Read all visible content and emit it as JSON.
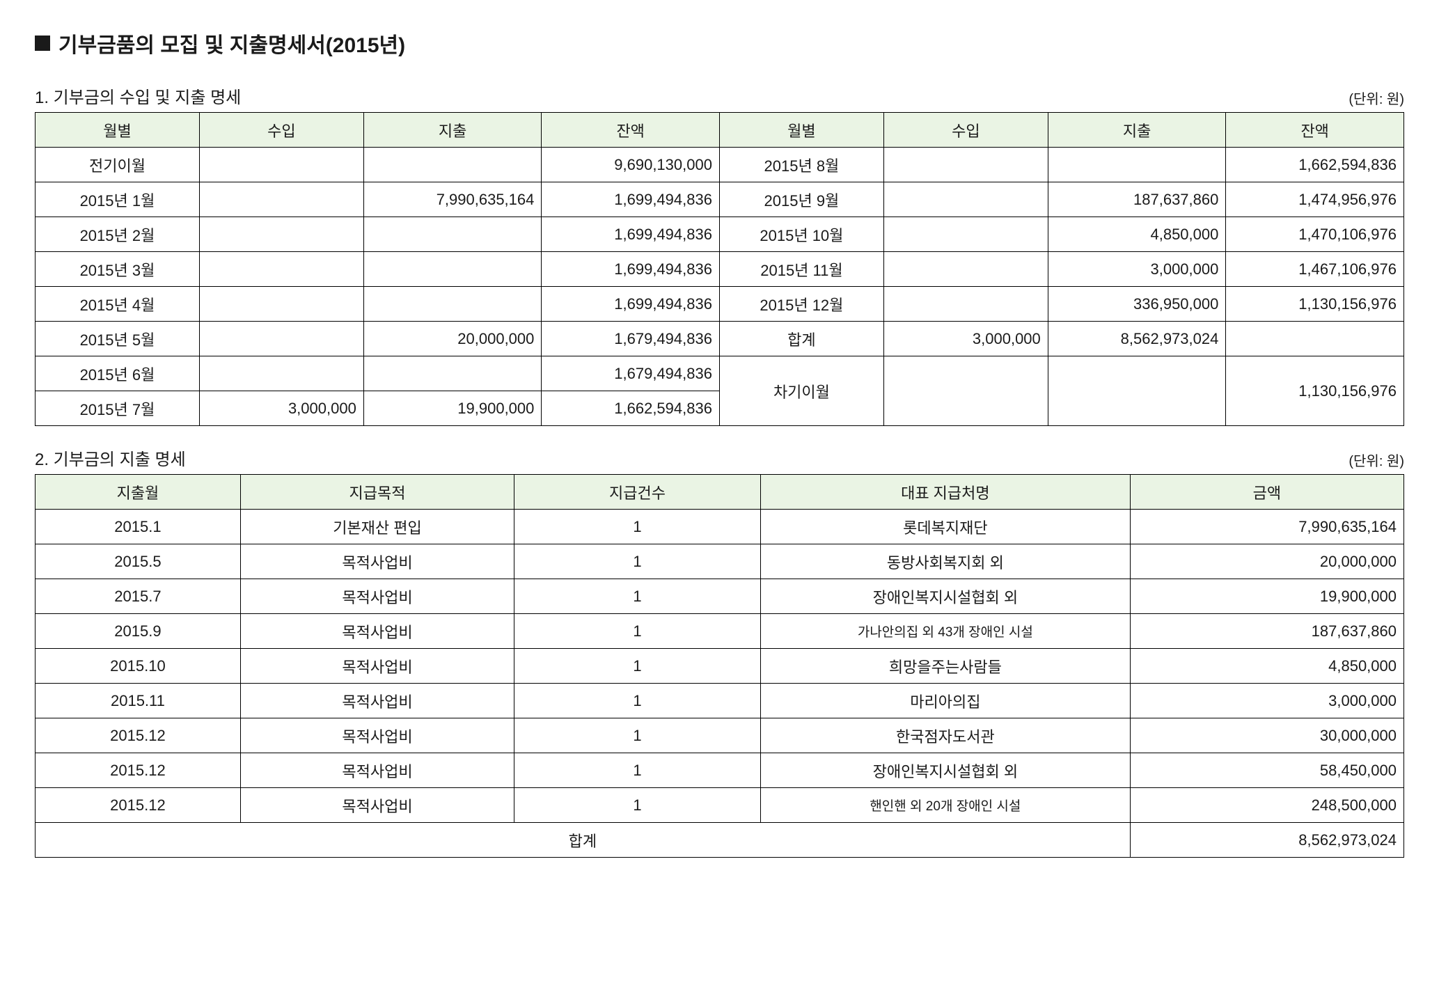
{
  "title": "기부금품의 모집 및 지출명세서(2015년)",
  "unit_label": "(단위: 원)",
  "section1": {
    "heading": "1. 기부금의 수입 및 지출 명세",
    "headers": [
      "월별",
      "수입",
      "지출",
      "잔액",
      "월별",
      "수입",
      "지출",
      "잔액"
    ],
    "rows": [
      {
        "m1": "전기이월",
        "i1": "",
        "e1": "",
        "b1": "9,690,130,000",
        "m2": "2015년 8월",
        "i2": "",
        "e2": "",
        "b2": "1,662,594,836"
      },
      {
        "m1": "2015년 1월",
        "i1": "",
        "e1": "7,990,635,164",
        "b1": "1,699,494,836",
        "m2": "2015년 9월",
        "i2": "",
        "e2": "187,637,860",
        "b2": "1,474,956,976"
      },
      {
        "m1": "2015년 2월",
        "i1": "",
        "e1": "",
        "b1": "1,699,494,836",
        "m2": "2015년 10월",
        "i2": "",
        "e2": "4,850,000",
        "b2": "1,470,106,976"
      },
      {
        "m1": "2015년 3월",
        "i1": "",
        "e1": "",
        "b1": "1,699,494,836",
        "m2": "2015년 11월",
        "i2": "",
        "e2": "3,000,000",
        "b2": "1,467,106,976"
      },
      {
        "m1": "2015년 4월",
        "i1": "",
        "e1": "",
        "b1": "1,699,494,836",
        "m2": "2015년 12월",
        "i2": "",
        "e2": "336,950,000",
        "b2": "1,130,156,976"
      },
      {
        "m1": "2015년 5월",
        "i1": "",
        "e1": "20,000,000",
        "b1": "1,679,494,836",
        "m2": "합계",
        "i2": "3,000,000",
        "e2": "8,562,973,024",
        "b2": ""
      }
    ],
    "row6": {
      "m1": "2015년 6월",
      "i1": "",
      "e1": "",
      "b1": "1,679,494,836"
    },
    "row7": {
      "m1": "2015년 7월",
      "i1": "3,000,000",
      "e1": "19,900,000",
      "b1": "1,662,594,836"
    },
    "carry_label": "차기이월",
    "carry_balance": "1,130,156,976"
  },
  "section2": {
    "heading": "2. 기부금의 지출 명세",
    "headers": [
      "지출월",
      "지급목적",
      "지급건수",
      "대표 지급처명",
      "금액"
    ],
    "rows": [
      {
        "month": "2015.1",
        "purpose": "기본재산 편입",
        "count": "1",
        "payee": "롯데복지재단",
        "amount": "7,990,635,164",
        "small": false
      },
      {
        "month": "2015.5",
        "purpose": "목적사업비",
        "count": "1",
        "payee": "동방사회복지회 외",
        "amount": "20,000,000",
        "small": false
      },
      {
        "month": "2015.7",
        "purpose": "목적사업비",
        "count": "1",
        "payee": "장애인복지시설협회 외",
        "amount": "19,900,000",
        "small": false
      },
      {
        "month": "2015.9",
        "purpose": "목적사업비",
        "count": "1",
        "payee": "가나안의집 외 43개 장애인 시설",
        "amount": "187,637,860",
        "small": true
      },
      {
        "month": "2015.10",
        "purpose": "목적사업비",
        "count": "1",
        "payee": "희망을주는사람들",
        "amount": "4,850,000",
        "small": false
      },
      {
        "month": "2015.11",
        "purpose": "목적사업비",
        "count": "1",
        "payee": "마리아의집",
        "amount": "3,000,000",
        "small": false
      },
      {
        "month": "2015.12",
        "purpose": "목적사업비",
        "count": "1",
        "payee": "한국점자도서관",
        "amount": "30,000,000",
        "small": false
      },
      {
        "month": "2015.12",
        "purpose": "목적사업비",
        "count": "1",
        "payee": "장애인복지시설협회 외",
        "amount": "58,450,000",
        "small": false
      },
      {
        "month": "2015.12",
        "purpose": "목적사업비",
        "count": "1",
        "payee": "핸인핸 외 20개 장애인 시설",
        "amount": "248,500,000",
        "small": true
      }
    ],
    "total_label": "합계",
    "total_amount": "8,562,973,024"
  }
}
